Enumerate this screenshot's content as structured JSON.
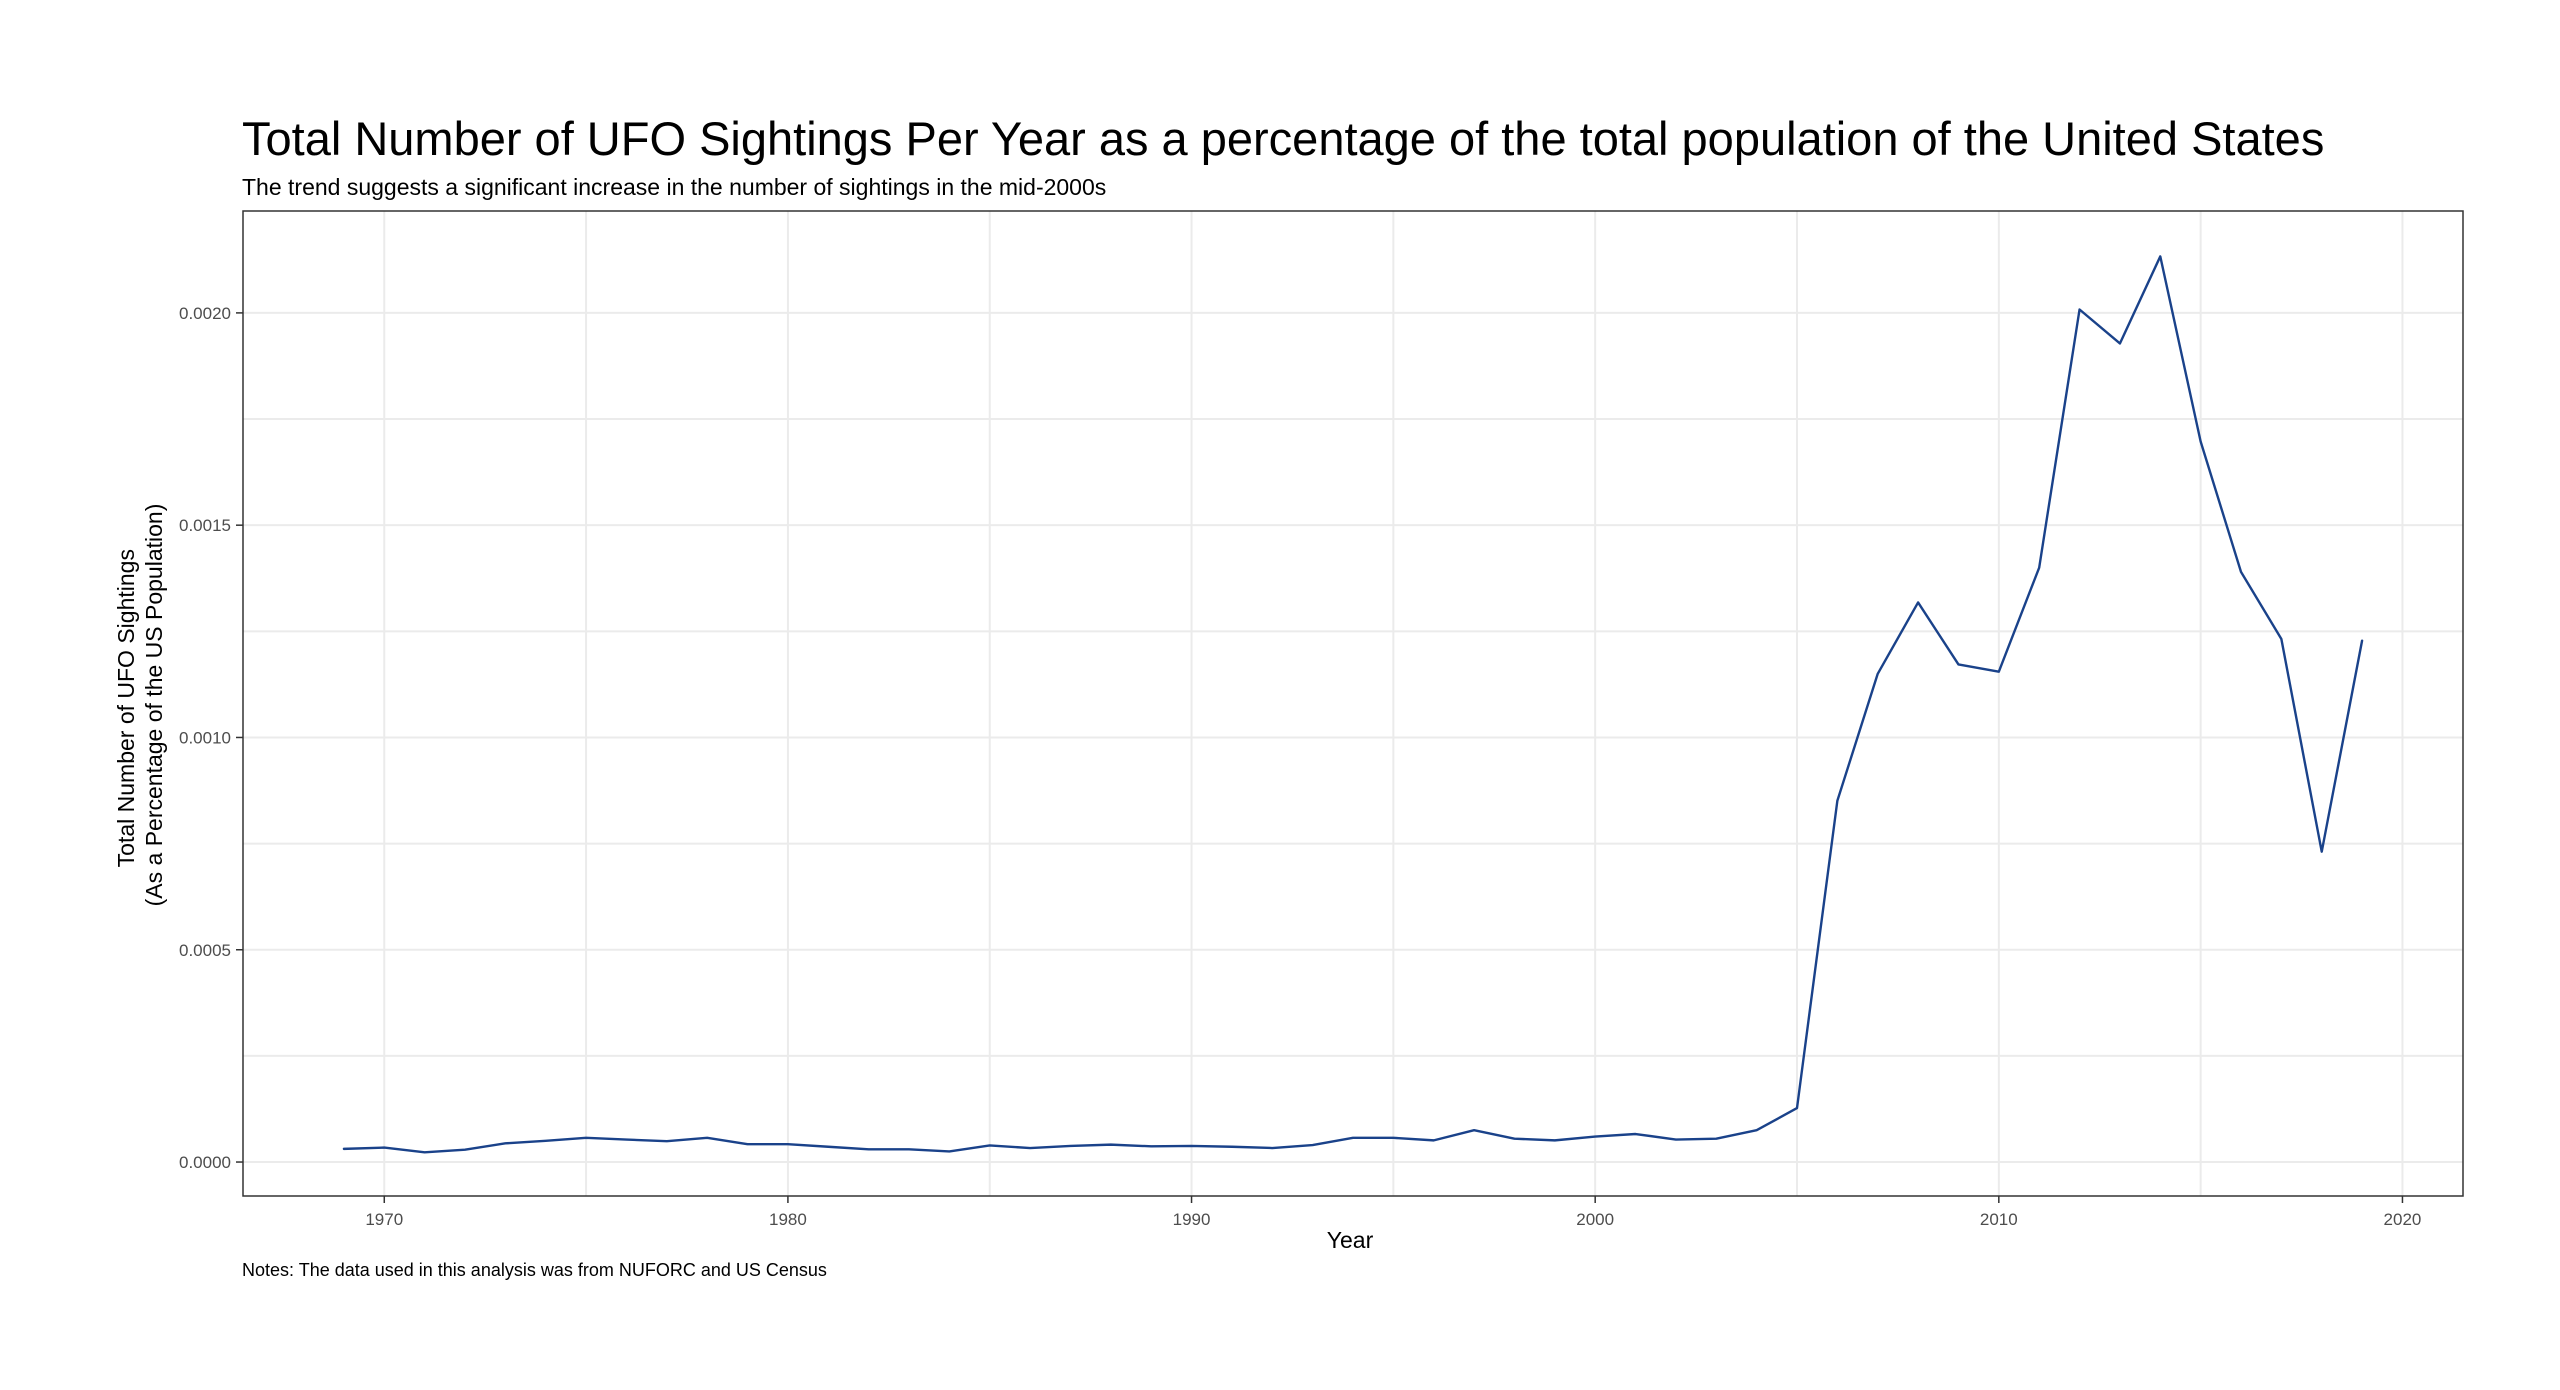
{
  "chart_data": {
    "type": "line",
    "title": "Total Number of UFO Sightings Per Year as a percentage of the total population of the United States",
    "subtitle": "The trend suggests a significant increase in the number of sightings in the mid-2000s",
    "caption": "Notes: The data used in this analysis was from NUFORC and US Census",
    "xlabel": "Year",
    "ylabel": [
      "Total Number of UFO Sightings",
      "(As a Percentage of the US Population)"
    ],
    "xlim": [
      1966.5,
      2021.5
    ],
    "ylim": [
      -8e-05,
      0.00224
    ],
    "x_ticks": [
      1970,
      1980,
      1990,
      2000,
      2010,
      2020
    ],
    "y_ticks": [
      0.0,
      0.0005,
      0.001,
      0.0015,
      0.002
    ],
    "y_tick_labels": [
      "0.0000",
      "0.0005",
      "0.0010",
      "0.0015",
      "0.0020"
    ],
    "grid": true,
    "line_color": "#1a428a",
    "series": [
      {
        "x": [
          1969,
          1970,
          1971,
          1972,
          1973,
          1974,
          1975,
          1976,
          1977,
          1978,
          1979,
          1980,
          1981,
          1982,
          1983,
          1984,
          1985,
          1986,
          1987,
          1988,
          1989,
          1990,
          1991,
          1992,
          1993,
          1994,
          1995,
          1996,
          1997,
          1998,
          1999,
          2000,
          2001,
          2002,
          2003,
          2004,
          2005,
          2006,
          2007,
          2008,
          2009,
          2010,
          2011,
          2012,
          2013,
          2014,
          2015,
          2016,
          2017,
          2018,
          2019
        ],
        "y": [
          3.1e-05,
          3.4e-05,
          2.3e-05,
          2.9e-05,
          4.4e-05,
          5e-05,
          5.7e-05,
          5.3e-05,
          4.9e-05,
          5.7e-05,
          4.2e-05,
          4.2e-05,
          3.6e-05,
          3e-05,
          3e-05,
          2.5e-05,
          3.9e-05,
          3.3e-05,
          3.8e-05,
          4.1e-05,
          3.7e-05,
          3.8e-05,
          3.6e-05,
          3.3e-05,
          4e-05,
          5.7e-05,
          5.7e-05,
          5.1e-05,
          7.5e-05,
          5.5e-05,
          5.1e-05,
          6e-05,
          6.6e-05,
          5.3e-05,
          5.5e-05,
          7.5e-05,
          0.000127,
          0.000851,
          0.00115,
          0.001318,
          0.001172,
          0.001155,
          0.0014,
          0.002008,
          0.001928,
          0.002133,
          0.001697,
          0.00139,
          0.001232,
          0.000731,
          0.001228
        ]
      }
    ]
  }
}
